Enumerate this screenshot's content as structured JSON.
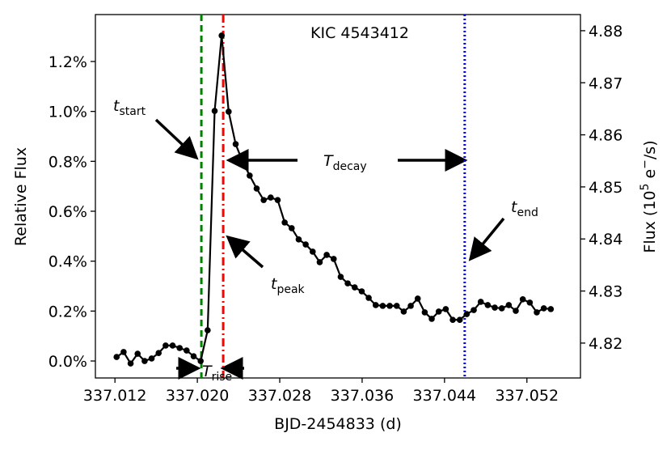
{
  "chart_data": {
    "type": "line",
    "title": "KIC 4543412",
    "xlabel": "BJD-2454833 (d)",
    "ylabel": "Relative Flux",
    "y2label": [
      "Flux (10",
      "5",
      " e",
      "−",
      "/s)"
    ],
    "xlim": [
      337.0101,
      337.0572
    ],
    "ylim": [
      -0.068,
      1.388
    ],
    "y2lim": [
      4.8133,
      4.8831
    ],
    "xticks": [
      337.012,
      337.02,
      337.028,
      337.036,
      337.044,
      337.052
    ],
    "xtick_labels": [
      "337.012",
      "337.020",
      "337.028",
      "337.036",
      "337.044",
      "337.052"
    ],
    "yticks": [
      {
        "value": 0,
        "label": "0.0%"
      },
      {
        "value": 0.2,
        "label": "0.2%"
      },
      {
        "value": 0.4,
        "label": "0.4%"
      },
      {
        "value": 0.6,
        "label": "0.6%"
      },
      {
        "value": 0.8,
        "label": "0.8%"
      },
      {
        "value": 1.0,
        "label": "1.0%"
      },
      {
        "value": 1.2,
        "label": "1.2%"
      }
    ],
    "y2ticks": [
      4.82,
      4.83,
      4.84,
      4.85,
      4.86,
      4.87,
      4.88
    ],
    "series": [
      {
        "color": "#000000",
        "x": [
          337.01216,
          337.01284,
          337.01352,
          337.0142,
          337.01488,
          337.01556,
          337.01624,
          337.01692,
          337.0176,
          337.01828,
          337.01896,
          337.01964,
          337.02032,
          337.021,
          337.02168,
          337.02236,
          337.02304,
          337.02372,
          337.0244,
          337.02508,
          337.02576,
          337.02644,
          337.02712,
          337.0278,
          337.02848,
          337.02916,
          337.02984,
          337.03052,
          337.0312,
          337.03188,
          337.03256,
          337.03324,
          337.03392,
          337.0346,
          337.03528,
          337.03596,
          337.03664,
          337.03732,
          337.038,
          337.03868,
          337.03936,
          337.04004,
          337.04072,
          337.0414,
          337.04208,
          337.04276,
          337.04344,
          337.04412,
          337.0448,
          337.04548,
          337.04616,
          337.04684,
          337.04752,
          337.0482,
          337.04888,
          337.04956,
          337.05024,
          337.05092,
          337.0516,
          337.05228,
          337.05296,
          337.05364,
          337.05432
        ],
        "values": [
          0.016,
          0.036,
          -0.01,
          0.029,
          0.0,
          0.01,
          0.032,
          0.062,
          0.062,
          0.052,
          0.042,
          0.019,
          0.0,
          0.123,
          1.002,
          1.304,
          0.999,
          0.869,
          0.798,
          0.743,
          0.691,
          0.645,
          0.655,
          0.645,
          0.555,
          0.532,
          0.487,
          0.467,
          0.438,
          0.396,
          0.425,
          0.409,
          0.337,
          0.311,
          0.295,
          0.279,
          0.253,
          0.224,
          0.221,
          0.221,
          0.221,
          0.198,
          0.221,
          0.25,
          0.195,
          0.169,
          0.198,
          0.208,
          0.165,
          0.165,
          0.188,
          0.204,
          0.237,
          0.224,
          0.214,
          0.211,
          0.224,
          0.201,
          0.247,
          0.234,
          0.195,
          0.211,
          0.208
        ]
      }
    ],
    "vlines": [
      {
        "x": 337.02039,
        "color": "#008000",
        "dash": "8,5"
      },
      {
        "x": 337.02251,
        "color": "#ff0000",
        "dash": "10,4,2,4"
      },
      {
        "x": 337.04596,
        "color": "#0000ff",
        "dash": "2,3"
      }
    ],
    "annotations": [
      {
        "text": "t",
        "sub": "start"
      },
      {
        "text": "T",
        "sub": "decay"
      },
      {
        "text": "t",
        "sub": "end"
      },
      {
        "text": "t",
        "sub": "peak"
      },
      {
        "text": "T",
        "sub": "rise"
      }
    ]
  }
}
